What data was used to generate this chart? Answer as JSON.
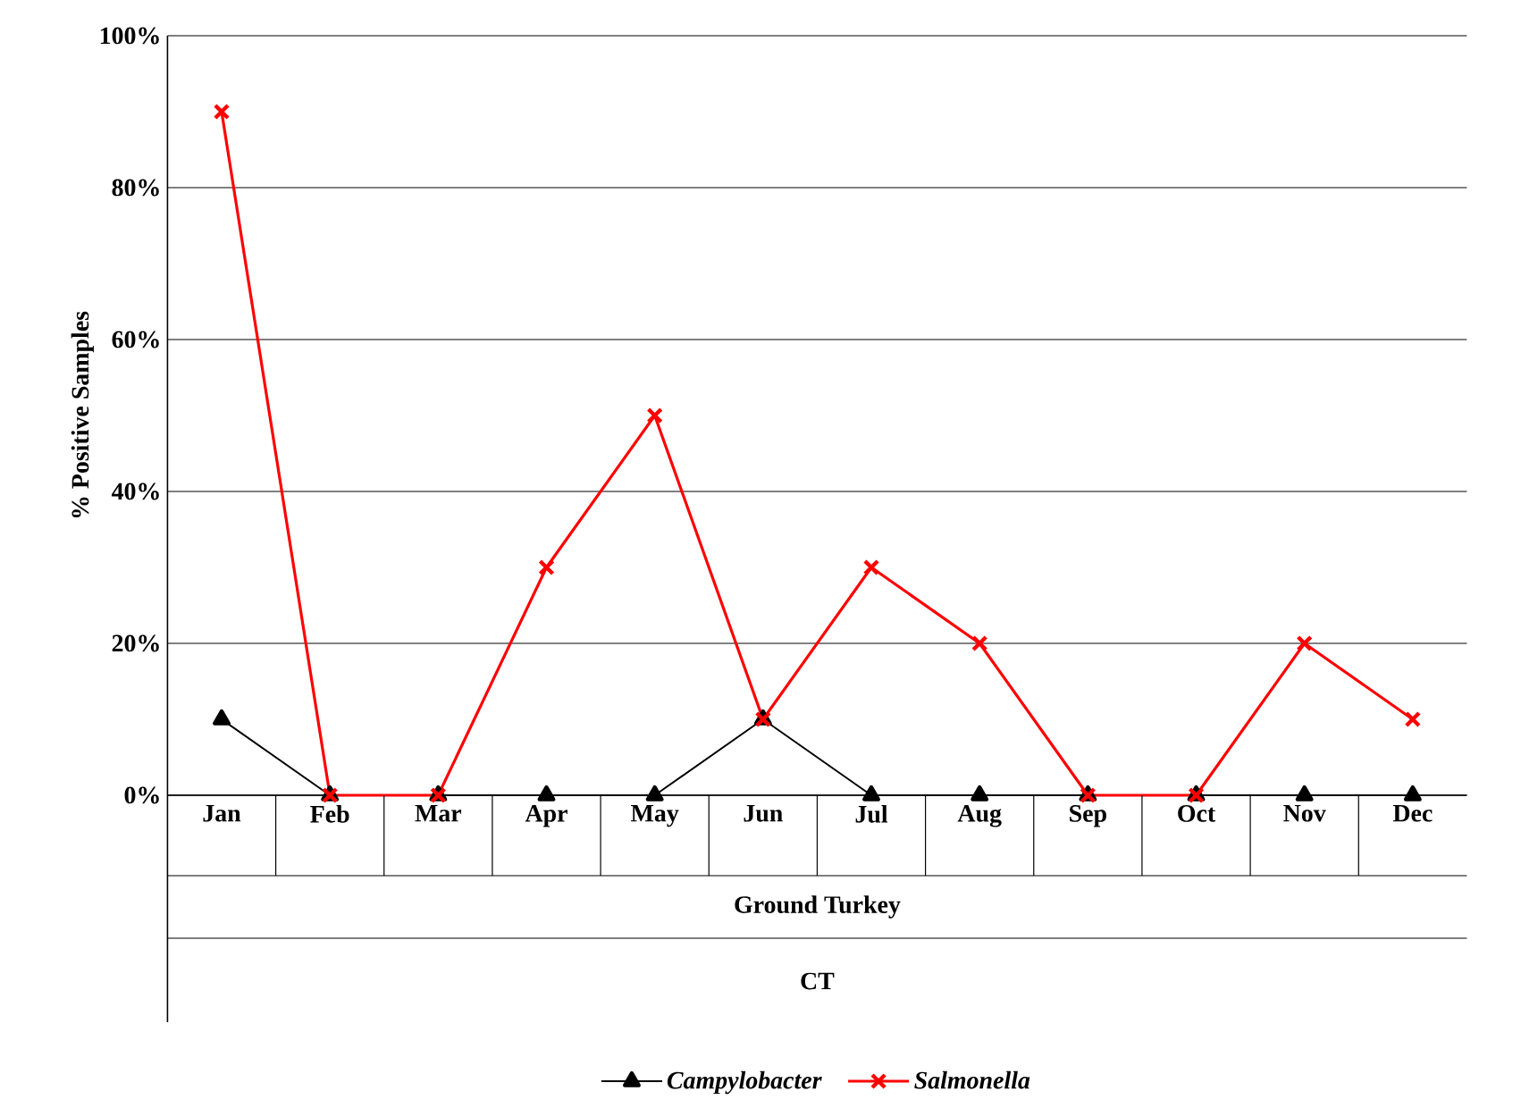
{
  "chart_data": {
    "type": "line",
    "ylabel": "% Positive Samples",
    "xlabel": "Ground Turkey",
    "annotations": [
      "CT"
    ],
    "categories": [
      "Jan",
      "Feb",
      "Mar",
      "Apr",
      "May",
      "Jun",
      "Jul",
      "Aug",
      "Sep",
      "Oct",
      "Nov",
      "Dec"
    ],
    "series": [
      {
        "name": "Campylobacter",
        "color": "#000000",
        "marker": "triangle",
        "values": [
          10,
          0,
          0,
          0,
          0,
          10,
          0,
          0,
          0,
          0,
          0,
          0
        ]
      },
      {
        "name": "Salmonella",
        "color": "#ff0000",
        "marker": "cross",
        "values": [
          90,
          0,
          0,
          30,
          50,
          10,
          30,
          20,
          0,
          0,
          20,
          10
        ]
      }
    ],
    "ylim": [
      0,
      100
    ],
    "yticks": [
      {
        "value": 0,
        "label": "0%"
      },
      {
        "value": 20,
        "label": "20%"
      },
      {
        "value": 40,
        "label": "40%"
      },
      {
        "value": 60,
        "label": "60%"
      },
      {
        "value": 80,
        "label": "80%"
      },
      {
        "value": 100,
        "label": "100%"
      }
    ],
    "grid": "y",
    "legend": "bottom",
    "line_style": "solid"
  }
}
